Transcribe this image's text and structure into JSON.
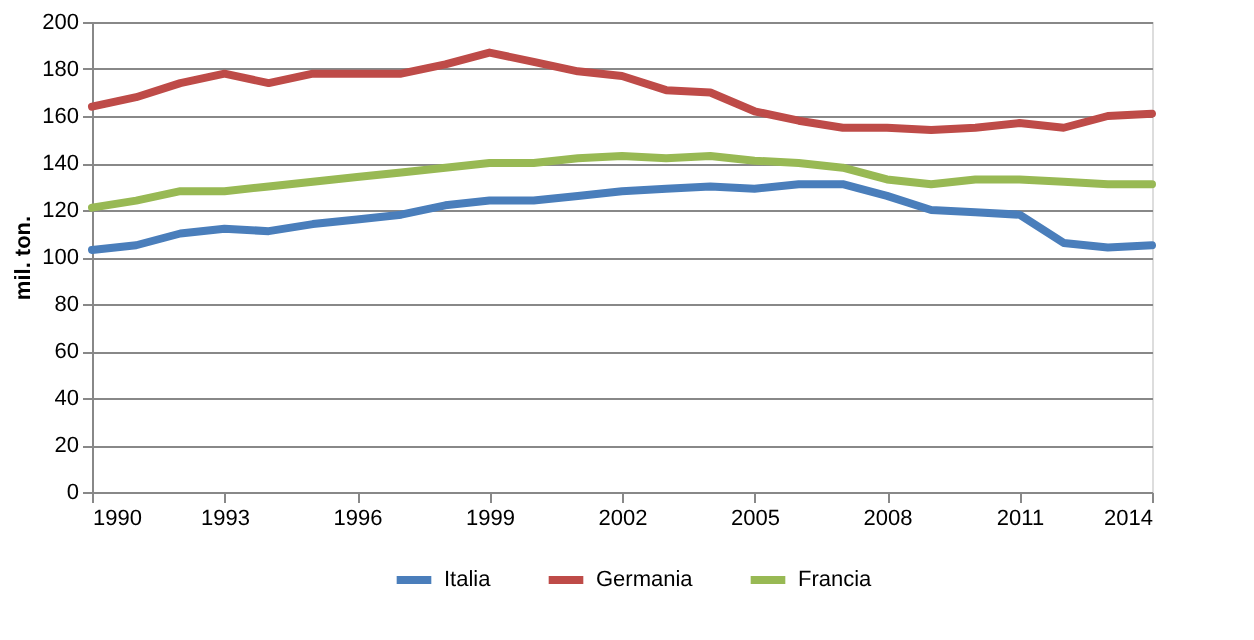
{
  "chart_data": {
    "type": "line",
    "ylabel": "mil. ton.",
    "x": [
      1990,
      1991,
      1992,
      1993,
      1994,
      1995,
      1996,
      1997,
      1998,
      1999,
      2000,
      2001,
      2002,
      2003,
      2004,
      2005,
      2006,
      2007,
      2008,
      2009,
      2010,
      2011,
      2012,
      2013,
      2014
    ],
    "series": [
      {
        "name": "Italia",
        "color": "#4a7ebb",
        "values": [
          103,
          105,
          110,
          112,
          111,
          114,
          116,
          118,
          122,
          124,
          124,
          126,
          128,
          129,
          130,
          129,
          131,
          131,
          126,
          120,
          119,
          118,
          106,
          104,
          105
        ]
      },
      {
        "name": "Germania",
        "color": "#be4b48",
        "values": [
          164,
          168,
          174,
          178,
          174,
          178,
          178,
          178,
          182,
          187,
          183,
          179,
          177,
          171,
          170,
          162,
          158,
          155,
          155,
          154,
          155,
          157,
          155,
          160,
          161
        ]
      },
      {
        "name": "Francia",
        "color": "#98b954",
        "values": [
          121,
          124,
          128,
          128,
          130,
          132,
          134,
          136,
          138,
          140,
          140,
          142,
          143,
          142,
          143,
          141,
          140,
          138,
          133,
          131,
          133,
          133,
          132,
          131,
          131
        ]
      }
    ],
    "xlim": [
      1990,
      2014
    ],
    "xticks": [
      1990,
      1993,
      1996,
      1999,
      2002,
      2005,
      2008,
      2011,
      2014
    ],
    "ylim": [
      0,
      200
    ],
    "yticks": [
      0,
      20,
      40,
      60,
      80,
      100,
      120,
      140,
      160,
      180,
      200
    ],
    "grid": "y",
    "legend": "bottom",
    "marker": "none",
    "line_style": "solid"
  }
}
